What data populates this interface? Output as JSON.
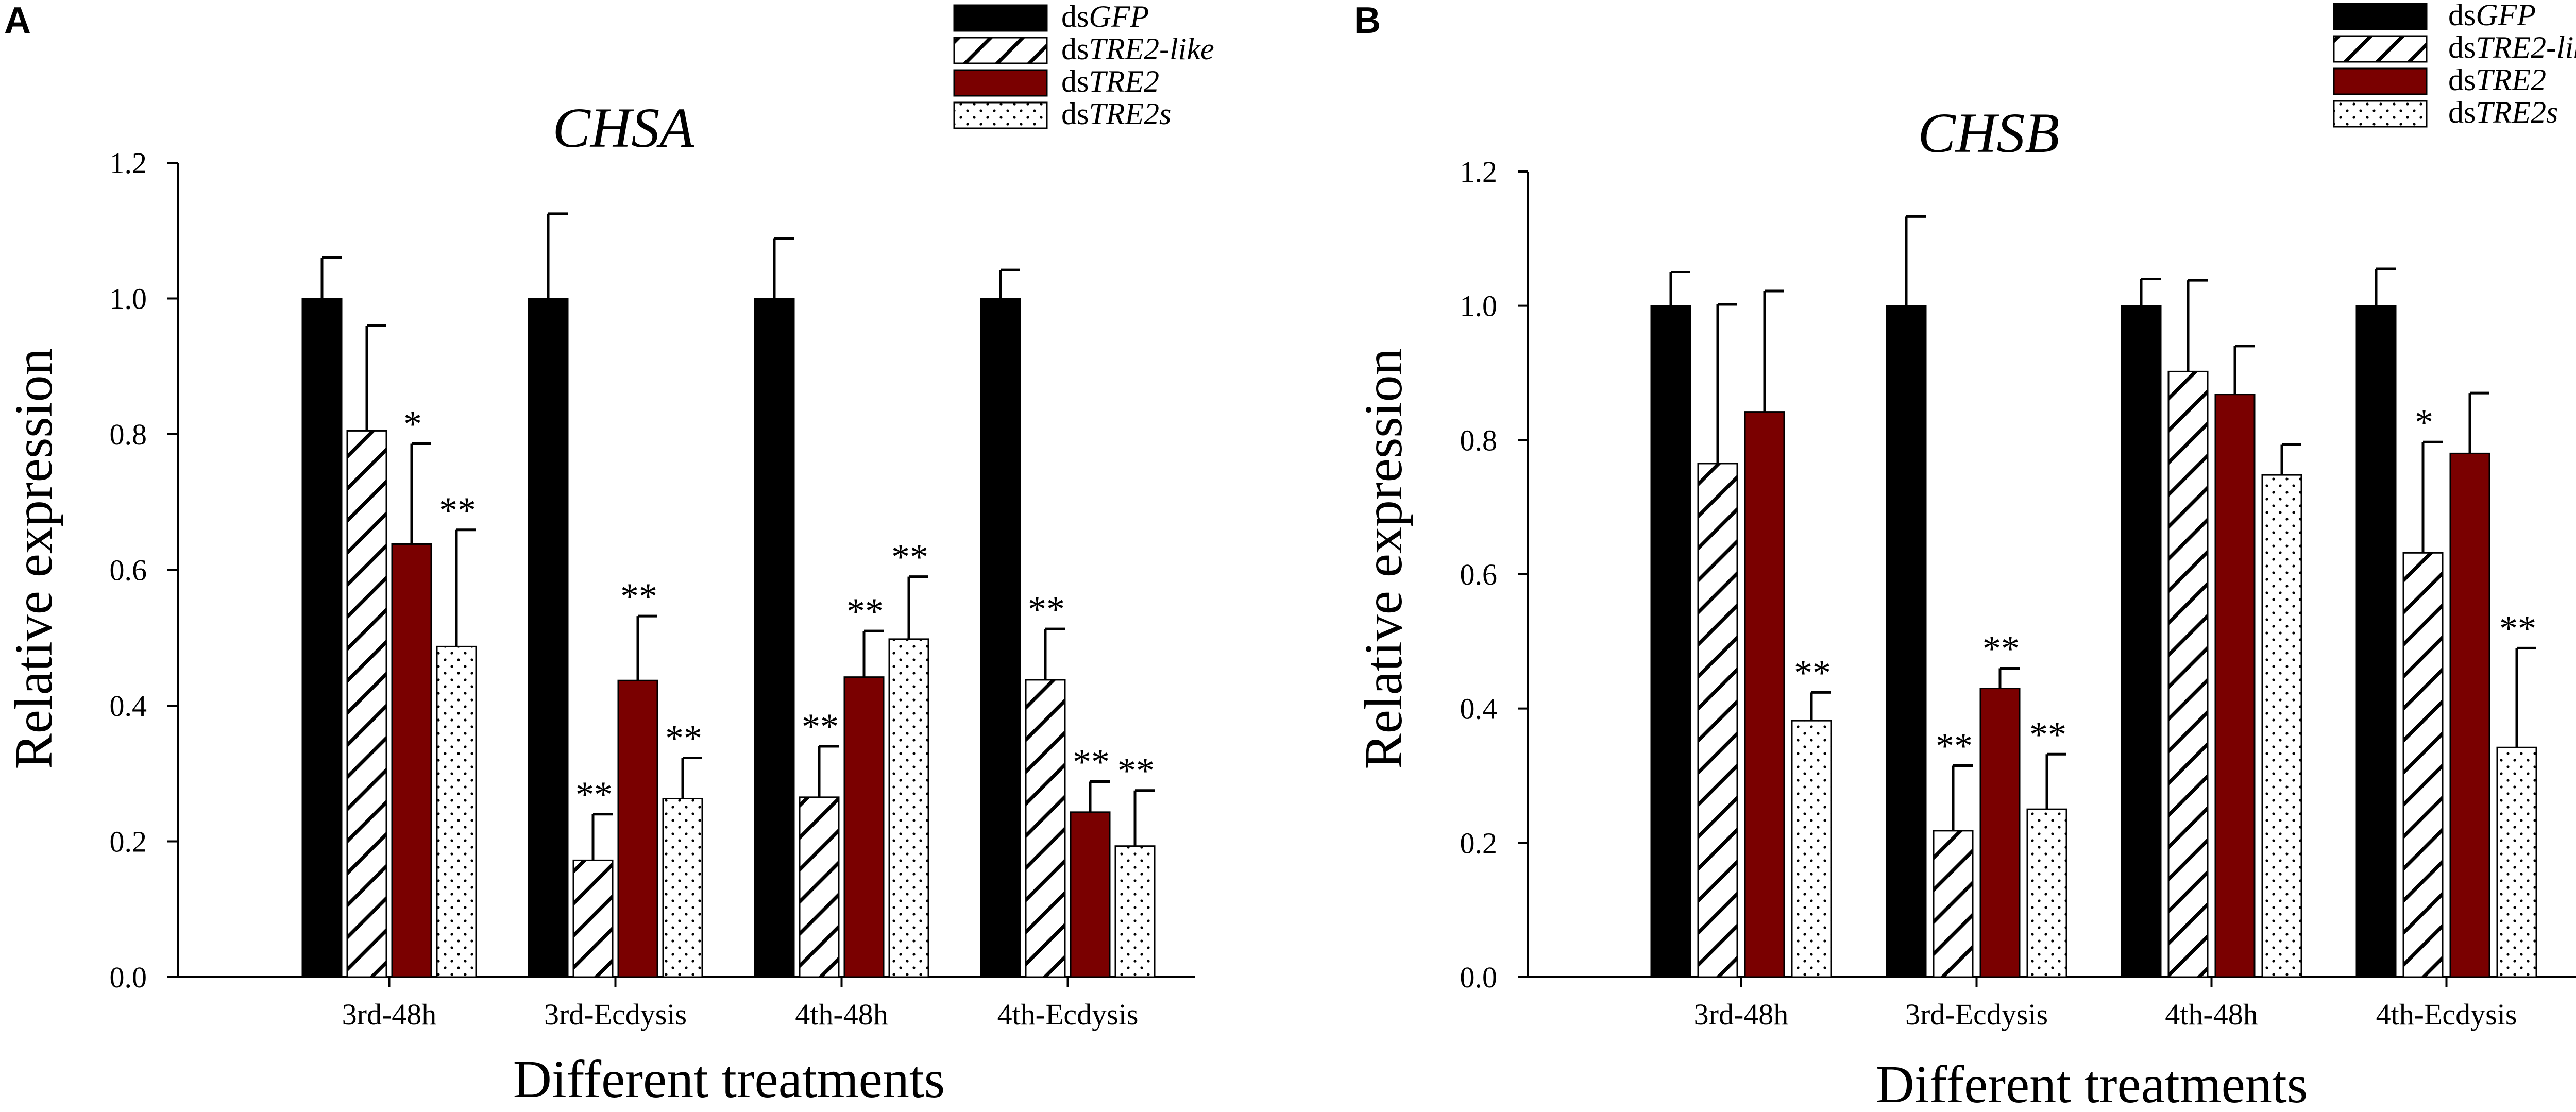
{
  "figure": {
    "colors": {
      "background": "#ffffff",
      "axis": "#000000",
      "gfp": "#000000",
      "tre2": "#7a0000"
    },
    "legend": [
      {
        "prefix": "ds",
        "gene": "GFP",
        "pattern": "solid-black"
      },
      {
        "prefix": "ds",
        "gene": "TRE2-like",
        "pattern": "diagonal-hatch"
      },
      {
        "prefix": "ds",
        "gene": "TRE2",
        "pattern": "solid-darkred"
      },
      {
        "prefix": "ds",
        "gene": "TRE2s",
        "pattern": "dotted"
      }
    ]
  },
  "chart_data": [
    {
      "panel": "A",
      "type": "bar",
      "title": "CHSA",
      "xlabel": "Different treatments",
      "ylabel": "Relative expression",
      "ylim": [
        0,
        1.2
      ],
      "yticks": [
        "0.0",
        "0.2",
        "0.4",
        "0.6",
        "0.8",
        "1.0",
        "1.2"
      ],
      "grid": false,
      "legend_position": "top-right",
      "categories": [
        "3rd-48h",
        "3rd-Ecdysis",
        "4th-48h",
        "4th-Ecdysis"
      ],
      "series": [
        {
          "name": "dsGFP",
          "values": [
            1.0,
            1.0,
            1.0,
            1.0
          ],
          "errors": [
            0.06,
            0.125,
            0.088,
            0.042
          ],
          "significance": [
            "",
            "",
            "",
            ""
          ]
        },
        {
          "name": "dsTRE2-like",
          "values": [
            0.805,
            0.172,
            0.265,
            0.438
          ],
          "errors": [
            0.155,
            0.068,
            0.075,
            0.075
          ],
          "significance": [
            "",
            "**",
            "**",
            "**"
          ]
        },
        {
          "name": "dsTRE2",
          "values": [
            0.638,
            0.437,
            0.442,
            0.243
          ],
          "errors": [
            0.148,
            0.095,
            0.068,
            0.045
          ],
          "significance": [
            "*",
            "**",
            "**",
            "**"
          ]
        },
        {
          "name": "dsTRE2s",
          "values": [
            0.487,
            0.263,
            0.498,
            0.193
          ],
          "errors": [
            0.172,
            0.06,
            0.092,
            0.082
          ],
          "significance": [
            "**",
            "**",
            "**",
            "**"
          ]
        }
      ]
    },
    {
      "panel": "B",
      "type": "bar",
      "title": "CHSB",
      "xlabel": "Different treatments",
      "ylabel": "Relative expression",
      "ylim": [
        0,
        1.2
      ],
      "yticks": [
        "0.0",
        "0.2",
        "0.4",
        "0.6",
        "0.8",
        "1.0",
        "1.2"
      ],
      "grid": false,
      "legend_position": "top-right",
      "categories": [
        "3rd-48h",
        "3rd-Ecdysis",
        "4th-48h",
        "4th-Ecdysis"
      ],
      "series": [
        {
          "name": "dsGFP",
          "values": [
            1.0,
            1.0,
            1.0,
            1.0
          ],
          "errors": [
            0.05,
            0.133,
            0.04,
            0.055
          ],
          "significance": [
            "",
            "",
            "",
            ""
          ]
        },
        {
          "name": "dsTRE2-like",
          "values": [
            0.765,
            0.218,
            0.902,
            0.632
          ],
          "errors": [
            0.237,
            0.097,
            0.136,
            0.165
          ],
          "significance": [
            "",
            "**",
            "",
            "*"
          ]
        },
        {
          "name": "dsTRE2",
          "values": [
            0.842,
            0.43,
            0.868,
            0.78
          ],
          "errors": [
            0.18,
            0.03,
            0.072,
            0.09
          ],
          "significance": [
            "",
            "**",
            "",
            ""
          ]
        },
        {
          "name": "dsTRE2s",
          "values": [
            0.382,
            0.25,
            0.748,
            0.342
          ],
          "errors": [
            0.042,
            0.082,
            0.045,
            0.148
          ],
          "significance": [
            "**",
            "**",
            "",
            "**"
          ]
        }
      ]
    }
  ]
}
